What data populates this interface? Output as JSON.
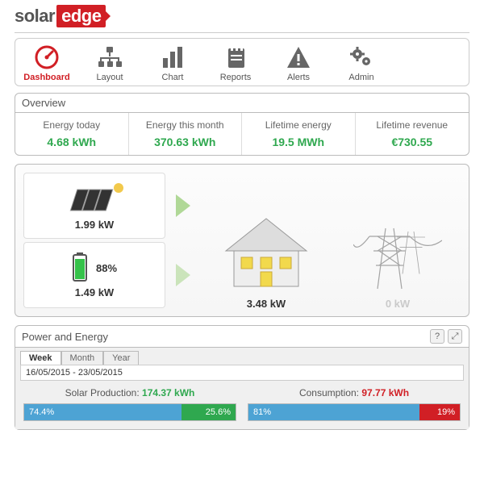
{
  "logo": {
    "part1": "solar",
    "part2": "edge"
  },
  "nav": [
    {
      "label": "Dashboard",
      "icon": "gauge",
      "active": true
    },
    {
      "label": "Layout",
      "icon": "hierarchy",
      "active": false
    },
    {
      "label": "Chart",
      "icon": "bars",
      "active": false
    },
    {
      "label": "Reports",
      "icon": "notebook",
      "active": false
    },
    {
      "label": "Alerts",
      "icon": "warning",
      "active": false
    },
    {
      "label": "Admin",
      "icon": "gears",
      "active": false
    }
  ],
  "overview": {
    "title": "Overview",
    "cells": [
      {
        "label": "Energy today",
        "value": "4.68 kWh"
      },
      {
        "label": "Energy this month",
        "value": "370.63 kWh"
      },
      {
        "label": "Lifetime energy",
        "value": "19.5 MWh"
      },
      {
        "label": "Lifetime revenue",
        "value": "€730.55"
      }
    ]
  },
  "flow": {
    "solar_power": "1.99 kW",
    "battery_pct": "88%",
    "battery_power": "1.49 kW",
    "house_power": "3.48 kW",
    "grid_power": "0 kW"
  },
  "power_energy": {
    "title": "Power and Energy",
    "tabs": [
      "Week",
      "Month",
      "Year"
    ],
    "active_tab": 0,
    "date_range": "16/05/2015 - 23/05/2015",
    "production": {
      "label": "Solar Production:",
      "value": "174.37 kWh",
      "bar": {
        "left_pct": 74.4,
        "left_label": "74.4%",
        "right_label": "25.6%",
        "right_color": "#2fa84f"
      }
    },
    "consumption": {
      "label": "Consumption:",
      "value": "97.77 kWh",
      "bar": {
        "left_pct": 81,
        "left_label": "81%",
        "right_label": "19%",
        "right_color": "#d11f25"
      }
    }
  },
  "colors": {
    "brand_red": "#d11f25",
    "green": "#2fa84f",
    "blue": "#4da3d4",
    "border": "#bbbbbb",
    "bg_panel": "#f0f0f0"
  }
}
